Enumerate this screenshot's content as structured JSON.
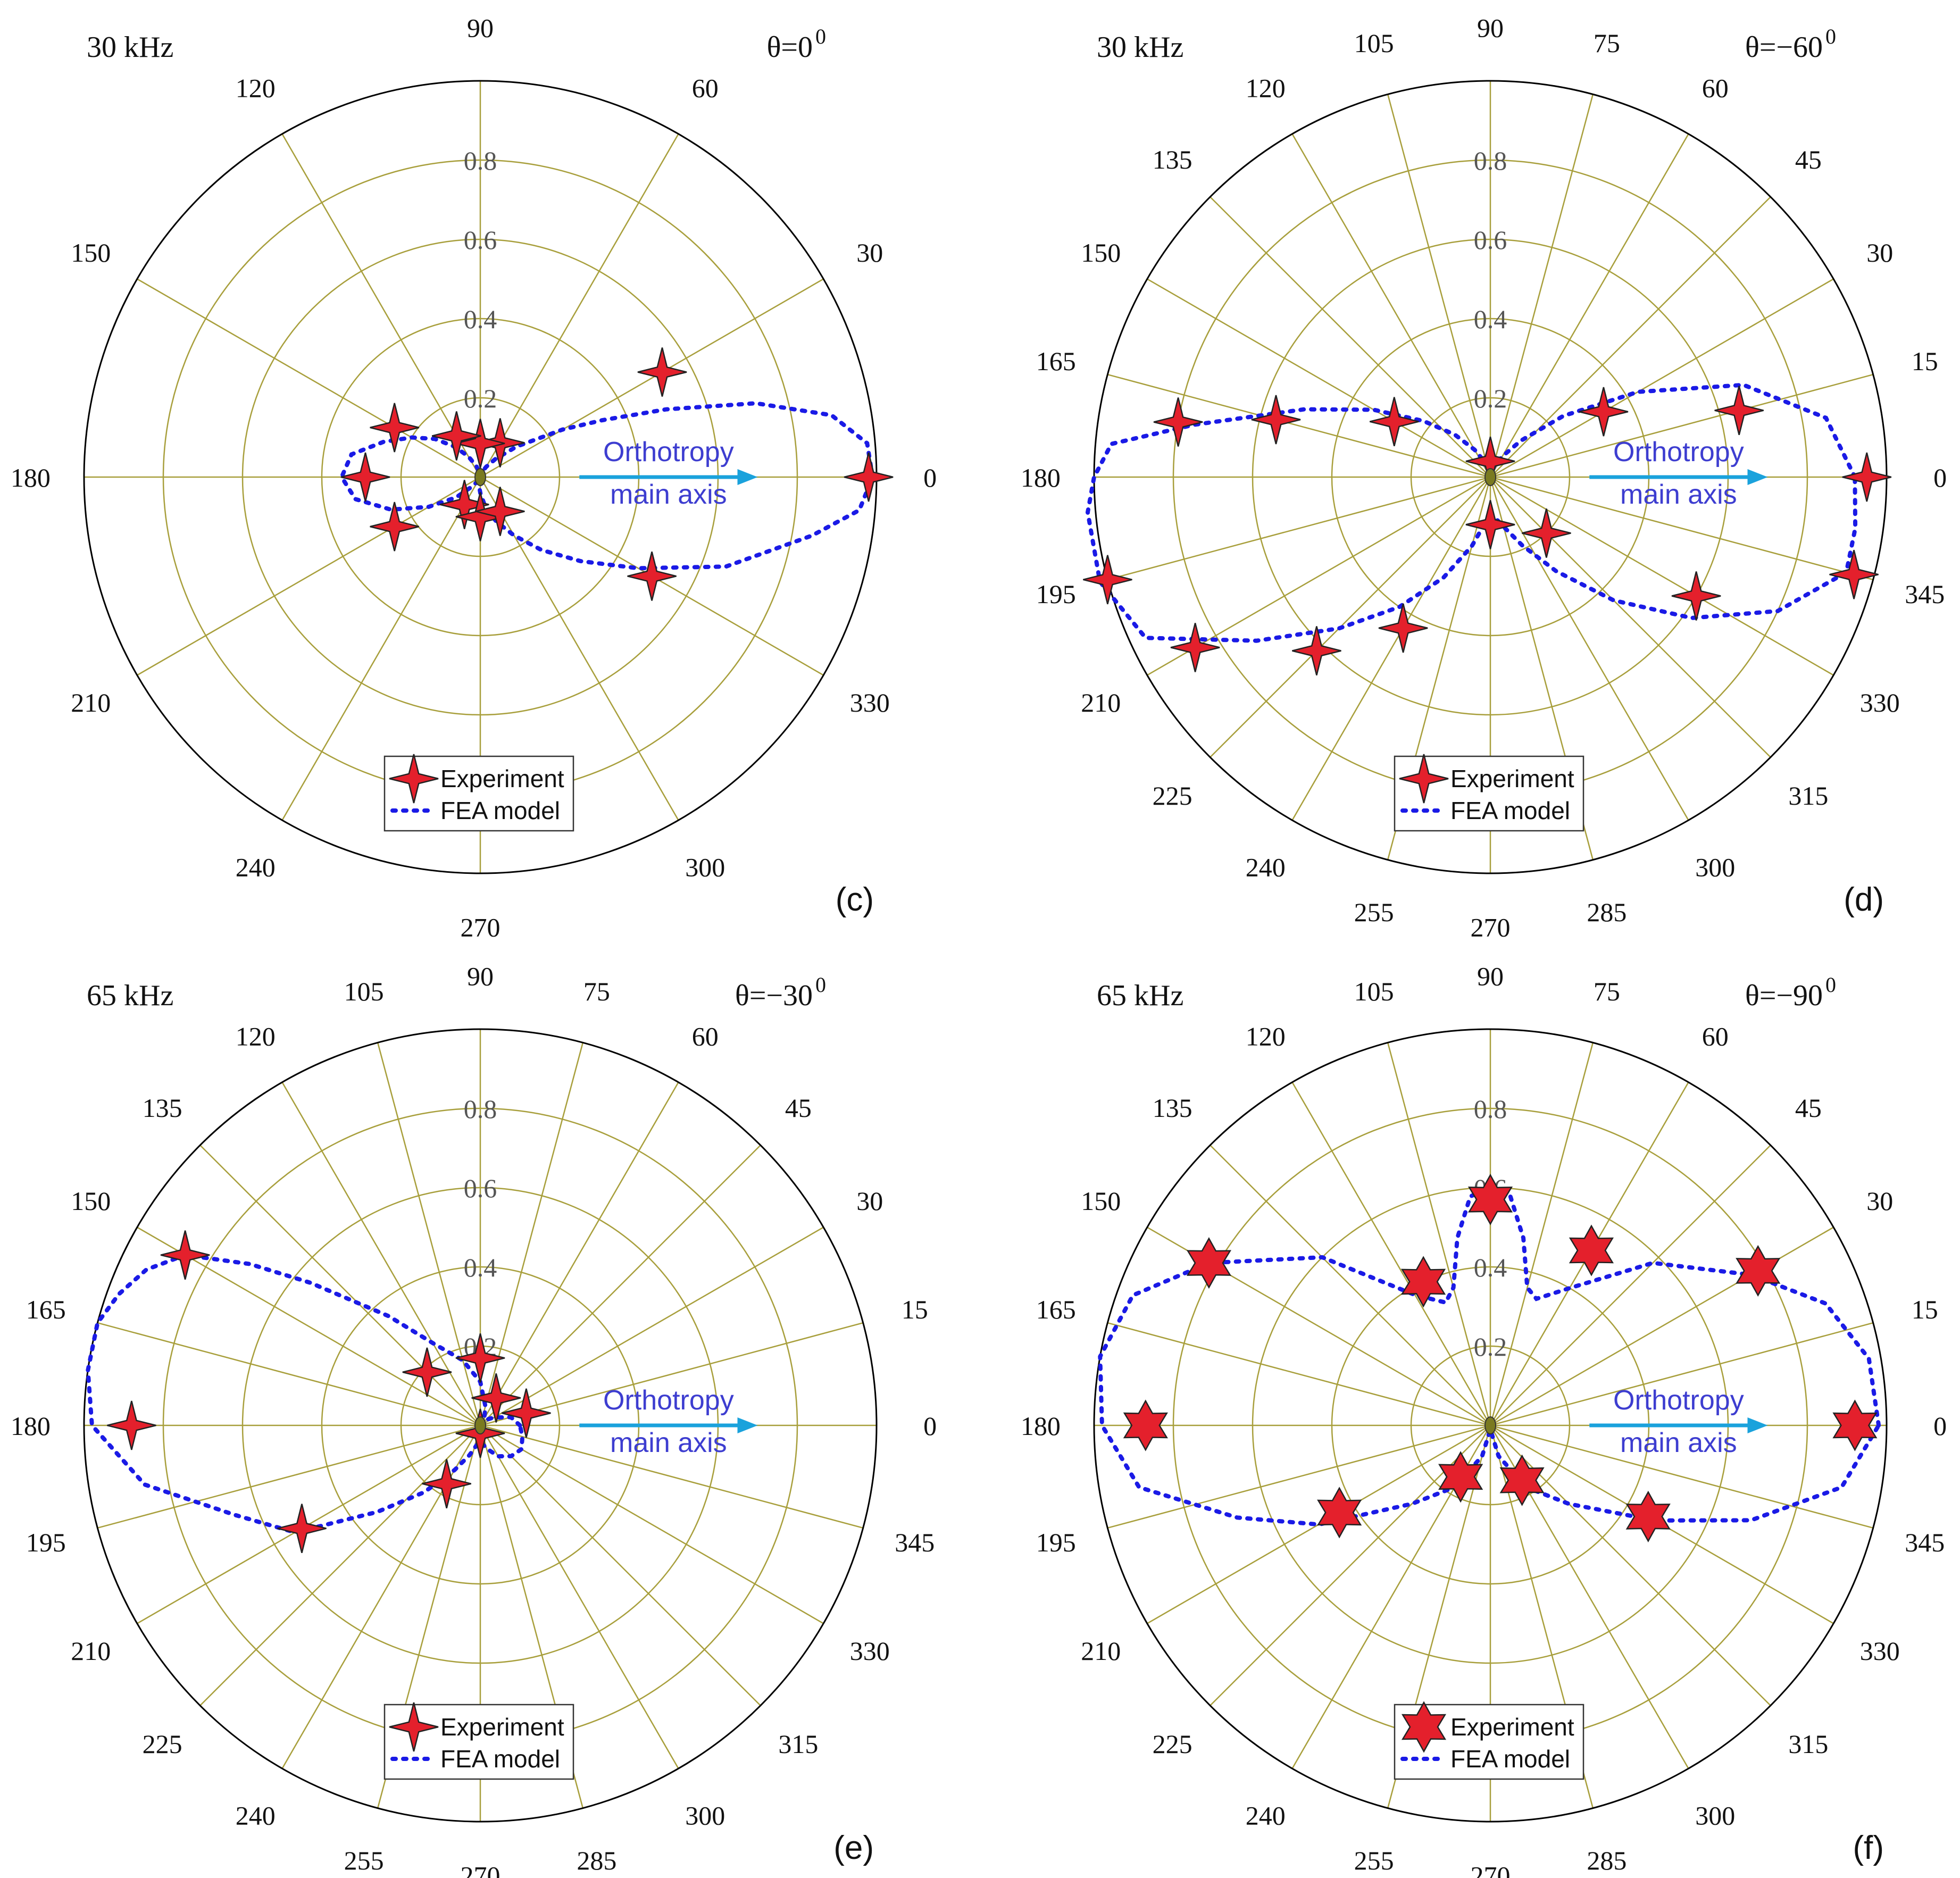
{
  "colors": {
    "grid": "#a89f3c",
    "outer": "#000000",
    "marker": "#e4202c",
    "marker_stroke": "#222222",
    "fea": "#1a1ae6",
    "annotation": "#3d3dd0",
    "arrow": "#1aa2dc",
    "text": "#111111"
  },
  "chart_data": [
    {
      "id": "c",
      "type": "polar",
      "panel_label": "(c)",
      "frequency_label": "30 kHz",
      "theta_label": "θ=0",
      "theta_sup": "0",
      "r_max": 1.0,
      "r_ticks": [
        "0.2",
        "0.4",
        "0.6",
        "0.8"
      ],
      "angle_step_deg": 30,
      "angle_labels": [
        "0",
        "30",
        "60",
        "90",
        "120",
        "150",
        "180",
        "210",
        "240",
        "270",
        "300",
        "330"
      ],
      "annotation": [
        "Orthotropy",
        "main axis"
      ],
      "legend": {
        "experiment": "Experiment",
        "fea": "FEA model",
        "position": "bottom-center"
      },
      "marker_shape": "star4",
      "experiment_points": [
        {
          "angle": 0,
          "r": 0.98
        },
        {
          "angle": 30,
          "r": 0.53
        },
        {
          "angle": 60,
          "r": 0.1
        },
        {
          "angle": 90,
          "r": 0.085
        },
        {
          "angle": 120,
          "r": 0.12
        },
        {
          "angle": 150,
          "r": 0.25
        },
        {
          "angle": 180,
          "r": 0.29
        },
        {
          "angle": 210,
          "r": 0.25
        },
        {
          "angle": 240,
          "r": 0.08
        },
        {
          "angle": 270,
          "r": 0.1
        },
        {
          "angle": 300,
          "r": 0.1
        },
        {
          "angle": 330,
          "r": 0.5
        }
      ],
      "fea_curve": [
        {
          "angle": 0,
          "r": 0.99
        },
        {
          "angle": 5,
          "r": 0.98
        },
        {
          "angle": 10,
          "r": 0.9
        },
        {
          "angle": 15,
          "r": 0.72
        },
        {
          "angle": 20,
          "r": 0.5
        },
        {
          "angle": 25,
          "r": 0.34
        },
        {
          "angle": 30,
          "r": 0.24
        },
        {
          "angle": 40,
          "r": 0.12
        },
        {
          "angle": 50,
          "r": 0.06
        },
        {
          "angle": 60,
          "r": 0.03
        },
        {
          "angle": 70,
          "r": 0.015
        },
        {
          "angle": 80,
          "r": 0.005
        },
        {
          "angle": 90,
          "r": 0.0
        },
        {
          "angle": 100,
          "r": 0.01
        },
        {
          "angle": 110,
          "r": 0.03
        },
        {
          "angle": 120,
          "r": 0.06
        },
        {
          "angle": 130,
          "r": 0.1
        },
        {
          "angle": 140,
          "r": 0.15
        },
        {
          "angle": 150,
          "r": 0.2
        },
        {
          "angle": 160,
          "r": 0.26
        },
        {
          "angle": 170,
          "r": 0.33
        },
        {
          "angle": 180,
          "r": 0.35
        },
        {
          "angle": 190,
          "r": 0.32
        },
        {
          "angle": 200,
          "r": 0.24
        },
        {
          "angle": 210,
          "r": 0.15
        },
        {
          "angle": 220,
          "r": 0.08
        },
        {
          "angle": 230,
          "r": 0.03
        },
        {
          "angle": 240,
          "r": 0.01
        },
        {
          "angle": 250,
          "r": 0.0
        },
        {
          "angle": 260,
          "r": 0.02
        },
        {
          "angle": 270,
          "r": 0.04
        },
        {
          "angle": 280,
          "r": 0.08
        },
        {
          "angle": 290,
          "r": 0.12
        },
        {
          "angle": 300,
          "r": 0.17
        },
        {
          "angle": 310,
          "r": 0.24
        },
        {
          "angle": 320,
          "r": 0.33
        },
        {
          "angle": 330,
          "r": 0.46
        },
        {
          "angle": 340,
          "r": 0.66
        },
        {
          "angle": 350,
          "r": 0.85
        },
        {
          "angle": 355,
          "r": 0.96
        }
      ]
    },
    {
      "id": "d",
      "type": "polar",
      "panel_label": "(d)",
      "frequency_label": "30 kHz",
      "theta_label": "θ=−60",
      "theta_sup": "0",
      "r_max": 1.0,
      "r_ticks": [
        "0.2",
        "0.4",
        "0.6",
        "0.8"
      ],
      "angle_step_deg": 15,
      "angle_labels": [
        "0",
        "15",
        "30",
        "45",
        "60",
        "75",
        "90",
        "105",
        "120",
        "135",
        "150",
        "165",
        "180",
        "195",
        "210",
        "225",
        "240",
        "255",
        "270",
        "285",
        "300",
        "315",
        "330",
        "345"
      ],
      "annotation": [
        "Orthotropy",
        "main axis"
      ],
      "legend": {
        "experiment": "Experiment",
        "fea": "FEA model",
        "position": "bottom-center"
      },
      "marker_shape": "star4",
      "experiment_points": [
        {
          "angle": 0,
          "r": 0.95
        },
        {
          "angle": 15,
          "r": 0.65
        },
        {
          "angle": 30,
          "r": 0.33
        },
        {
          "angle": 90,
          "r": 0.04
        },
        {
          "angle": 150,
          "r": 0.28
        },
        {
          "angle": 165,
          "r": 0.56
        },
        {
          "angle": 170,
          "r": 0.8
        },
        {
          "angle": 195,
          "r": 1.0
        },
        {
          "angle": 210,
          "r": 0.86
        },
        {
          "angle": 225,
          "r": 0.62
        },
        {
          "angle": 240,
          "r": 0.44
        },
        {
          "angle": 270,
          "r": 0.12
        },
        {
          "angle": 315,
          "r": 0.2
        },
        {
          "angle": 330,
          "r": 0.6
        },
        {
          "angle": 345,
          "r": 0.95
        }
      ],
      "fea_curve": [
        {
          "angle": 0,
          "r": 0.92
        },
        {
          "angle": 10,
          "r": 0.86
        },
        {
          "angle": 20,
          "r": 0.68
        },
        {
          "angle": 30,
          "r": 0.43
        },
        {
          "angle": 40,
          "r": 0.24
        },
        {
          "angle": 50,
          "r": 0.12
        },
        {
          "angle": 60,
          "r": 0.06
        },
        {
          "angle": 70,
          "r": 0.03
        },
        {
          "angle": 80,
          "r": 0.01
        },
        {
          "angle": 90,
          "r": 0.0
        },
        {
          "angle": 100,
          "r": 0.01
        },
        {
          "angle": 110,
          "r": 0.04
        },
        {
          "angle": 120,
          "r": 0.08
        },
        {
          "angle": 130,
          "r": 0.14
        },
        {
          "angle": 140,
          "r": 0.22
        },
        {
          "angle": 150,
          "r": 0.34
        },
        {
          "angle": 160,
          "r": 0.5
        },
        {
          "angle": 170,
          "r": 0.76
        },
        {
          "angle": 175,
          "r": 0.96
        },
        {
          "angle": 180,
          "r": 1.0
        },
        {
          "angle": 185,
          "r": 1.02
        },
        {
          "angle": 195,
          "r": 1.02
        },
        {
          "angle": 205,
          "r": 0.96
        },
        {
          "angle": 215,
          "r": 0.72
        },
        {
          "angle": 225,
          "r": 0.54
        },
        {
          "angle": 235,
          "r": 0.4
        },
        {
          "angle": 245,
          "r": 0.28
        },
        {
          "angle": 255,
          "r": 0.18
        },
        {
          "angle": 265,
          "r": 0.11
        },
        {
          "angle": 275,
          "r": 0.1
        },
        {
          "angle": 285,
          "r": 0.13
        },
        {
          "angle": 295,
          "r": 0.19
        },
        {
          "angle": 305,
          "r": 0.29
        },
        {
          "angle": 315,
          "r": 0.44
        },
        {
          "angle": 325,
          "r": 0.62
        },
        {
          "angle": 335,
          "r": 0.8
        },
        {
          "angle": 345,
          "r": 0.93
        },
        {
          "angle": 352,
          "r": 0.93
        }
      ]
    },
    {
      "id": "e",
      "type": "polar",
      "panel_label": "(e)",
      "frequency_label": "65 kHz",
      "theta_label": "θ=−30",
      "theta_sup": "0",
      "r_max": 1.0,
      "r_ticks": [
        "0.2",
        "0.4",
        "0.6",
        "0.8"
      ],
      "angle_step_deg": 15,
      "angle_labels": [
        "0",
        "15",
        "30",
        "45",
        "60",
        "75",
        "90",
        "105",
        "120",
        "135",
        "150",
        "165",
        "180",
        "195",
        "210",
        "225",
        "240",
        "255",
        "270",
        "285",
        "300",
        "315",
        "330",
        "345"
      ],
      "annotation": [
        "Orthotropy",
        "main axis"
      ],
      "legend": {
        "experiment": "Experiment",
        "fea": "FEA model",
        "position": "bottom-center"
      },
      "marker_shape": "star4",
      "experiment_points": [
        {
          "angle": 15,
          "r": 0.12
        },
        {
          "angle": 60,
          "r": 0.08
        },
        {
          "angle": 90,
          "r": 0.17
        },
        {
          "angle": 135,
          "r": 0.19
        },
        {
          "angle": 150,
          "r": 0.86
        },
        {
          "angle": 180,
          "r": 0.88
        },
        {
          "angle": 210,
          "r": 0.52
        },
        {
          "angle": 240,
          "r": 0.17
        },
        {
          "angle": 270,
          "r": 0.02
        }
      ],
      "fea_curve": [
        {
          "angle": 0,
          "r": 0.1
        },
        {
          "angle": 15,
          "r": 0.08
        },
        {
          "angle": 30,
          "r": 0.04
        },
        {
          "angle": 45,
          "r": 0.02
        },
        {
          "angle": 60,
          "r": 0.02
        },
        {
          "angle": 75,
          "r": 0.05
        },
        {
          "angle": 90,
          "r": 0.11
        },
        {
          "angle": 105,
          "r": 0.17
        },
        {
          "angle": 120,
          "r": 0.24
        },
        {
          "angle": 130,
          "r": 0.36
        },
        {
          "angle": 140,
          "r": 0.56
        },
        {
          "angle": 145,
          "r": 0.71
        },
        {
          "angle": 150,
          "r": 0.86
        },
        {
          "angle": 155,
          "r": 0.93
        },
        {
          "angle": 160,
          "r": 0.97
        },
        {
          "angle": 165,
          "r": 1.0
        },
        {
          "angle": 172,
          "r": 1.0
        },
        {
          "angle": 180,
          "r": 0.98
        },
        {
          "angle": 190,
          "r": 0.86
        },
        {
          "angle": 200,
          "r": 0.66
        },
        {
          "angle": 210,
          "r": 0.54
        },
        {
          "angle": 220,
          "r": 0.34
        },
        {
          "angle": 230,
          "r": 0.22
        },
        {
          "angle": 240,
          "r": 0.13
        },
        {
          "angle": 250,
          "r": 0.08
        },
        {
          "angle": 260,
          "r": 0.05
        },
        {
          "angle": 270,
          "r": 0.04
        },
        {
          "angle": 285,
          "r": 0.06
        },
        {
          "angle": 300,
          "r": 0.09
        },
        {
          "angle": 315,
          "r": 0.11
        },
        {
          "angle": 330,
          "r": 0.12
        },
        {
          "angle": 345,
          "r": 0.11
        }
      ]
    },
    {
      "id": "f",
      "type": "polar",
      "panel_label": "(f)",
      "frequency_label": "65 kHz",
      "theta_label": "θ=−90",
      "theta_sup": "0",
      "r_max": 1.0,
      "r_ticks": [
        "0.2",
        "0.4",
        "0.6",
        "0.8"
      ],
      "angle_step_deg": 15,
      "angle_labels": [
        "0",
        "15",
        "30",
        "45",
        "60",
        "75",
        "90",
        "105",
        "120",
        "135",
        "150",
        "165",
        "180",
        "195",
        "210",
        "225",
        "240",
        "255",
        "270",
        "285",
        "300",
        "315",
        "330",
        "345"
      ],
      "annotation": [
        "Orthotropy",
        "main axis"
      ],
      "legend": {
        "experiment": "Experiment",
        "fea": "FEA model",
        "position": "bottom-center"
      },
      "marker_shape": "star6",
      "experiment_points": [
        {
          "angle": 0,
          "r": 0.92
        },
        {
          "angle": 30,
          "r": 0.78
        },
        {
          "angle": 60,
          "r": 0.51
        },
        {
          "angle": 90,
          "r": 0.57
        },
        {
          "angle": 115,
          "r": 0.4
        },
        {
          "angle": 150,
          "r": 0.82
        },
        {
          "angle": 180,
          "r": 0.87
        },
        {
          "angle": 210,
          "r": 0.44
        },
        {
          "angle": 240,
          "r": 0.15
        },
        {
          "angle": 300,
          "r": 0.16
        },
        {
          "angle": 330,
          "r": 0.46
        }
      ],
      "fea_curve": [
        {
          "angle": 0,
          "r": 0.98
        },
        {
          "angle": 10,
          "r": 0.97
        },
        {
          "angle": 20,
          "r": 0.9
        },
        {
          "angle": 30,
          "r": 0.76
        },
        {
          "angle": 45,
          "r": 0.58
        },
        {
          "angle": 60,
          "r": 0.4
        },
        {
          "angle": 70,
          "r": 0.34
        },
        {
          "angle": 75,
          "r": 0.36
        },
        {
          "angle": 80,
          "r": 0.48
        },
        {
          "angle": 85,
          "r": 0.58
        },
        {
          "angle": 90,
          "r": 0.6
        },
        {
          "angle": 95,
          "r": 0.58
        },
        {
          "angle": 100,
          "r": 0.48
        },
        {
          "angle": 105,
          "r": 0.36
        },
        {
          "angle": 110,
          "r": 0.33
        },
        {
          "angle": 120,
          "r": 0.38
        },
        {
          "angle": 135,
          "r": 0.6
        },
        {
          "angle": 150,
          "r": 0.82
        },
        {
          "angle": 160,
          "r": 0.96
        },
        {
          "angle": 170,
          "r": 1.0
        },
        {
          "angle": 180,
          "r": 0.98
        },
        {
          "angle": 190,
          "r": 0.9
        },
        {
          "angle": 200,
          "r": 0.68
        },
        {
          "angle": 210,
          "r": 0.5
        },
        {
          "angle": 225,
          "r": 0.28
        },
        {
          "angle": 240,
          "r": 0.18
        },
        {
          "angle": 255,
          "r": 0.08
        },
        {
          "angle": 270,
          "r": 0.01
        },
        {
          "angle": 285,
          "r": 0.08
        },
        {
          "angle": 300,
          "r": 0.18
        },
        {
          "angle": 315,
          "r": 0.28
        },
        {
          "angle": 330,
          "r": 0.48
        },
        {
          "angle": 340,
          "r": 0.7
        },
        {
          "angle": 350,
          "r": 0.9
        }
      ]
    }
  ]
}
